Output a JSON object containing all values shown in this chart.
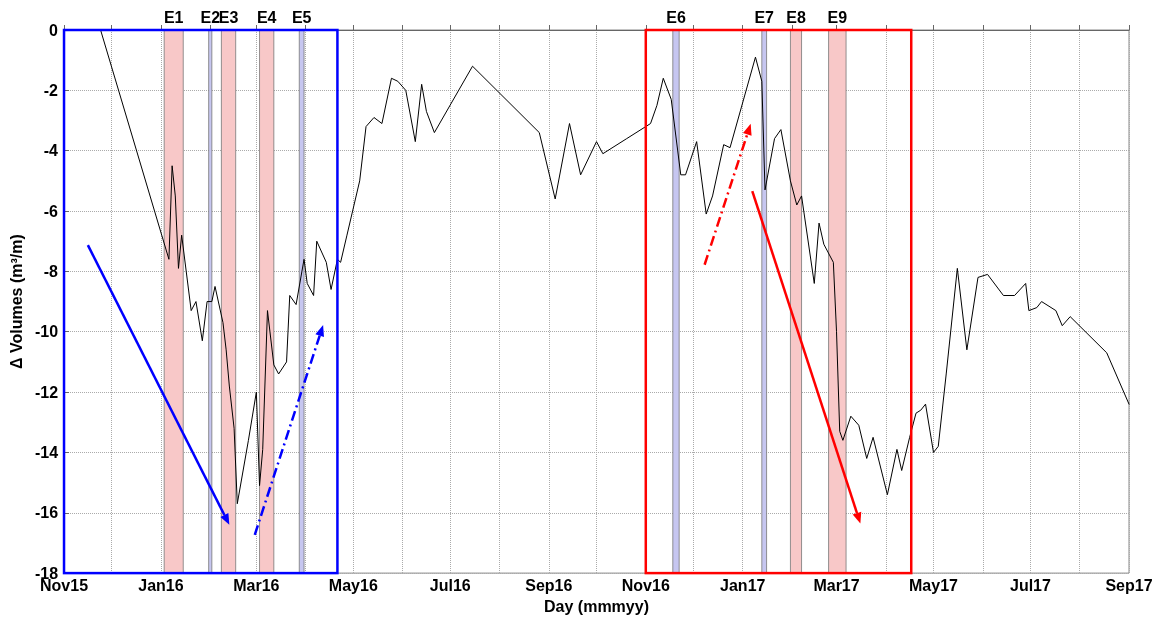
{
  "chart_data": {
    "type": "line",
    "xlabel": "Day (mmmyy)",
    "ylabel": "Δ Volumes (m³/m)",
    "x": [
      "2015-11-24",
      "2016-01-06",
      "2016-01-08",
      "2016-01-10",
      "2016-01-12",
      "2016-01-14",
      "2016-01-20",
      "2016-01-23",
      "2016-01-27",
      "2016-01-30",
      "2016-02-02",
      "2016-02-04",
      "2016-02-09",
      "2016-02-11",
      "2016-02-13",
      "2016-02-16",
      "2016-02-18",
      "2016-02-25",
      "2016-03-01",
      "2016-03-03",
      "2016-03-05",
      "2016-03-08",
      "2016-03-12",
      "2016-03-15",
      "2016-03-20",
      "2016-03-22",
      "2016-03-26",
      "2016-03-31",
      "2016-04-02",
      "2016-04-06",
      "2016-04-08",
      "2016-04-14",
      "2016-04-17",
      "2016-04-21",
      "2016-04-23",
      "2016-04-27",
      "2016-05-05",
      "2016-05-09",
      "2016-05-14",
      "2016-05-19",
      "2016-05-25",
      "2016-05-29",
      "2016-06-03",
      "2016-06-09",
      "2016-06-13",
      "2016-06-16",
      "2016-06-21",
      "2016-07-15",
      "2016-08-26",
      "2016-09-05",
      "2016-09-14",
      "2016-09-21",
      "2016-10-01",
      "2016-10-05",
      "2016-10-20",
      "2016-11-04",
      "2016-11-08",
      "2016-11-12",
      "2016-11-17",
      "2016-11-23",
      "2016-11-26",
      "2016-12-03",
      "2016-12-09",
      "2016-12-13",
      "2016-12-20",
      "2016-12-24",
      "2017-01-09",
      "2017-01-13",
      "2017-01-15",
      "2017-01-21",
      "2017-01-25",
      "2017-01-31",
      "2017-02-04",
      "2017-02-07",
      "2017-02-15",
      "2017-02-18",
      "2017-02-21",
      "2017-02-27",
      "2017-03-01",
      "2017-03-03",
      "2017-03-05",
      "2017-03-10",
      "2017-03-15",
      "2017-03-20",
      "2017-03-24",
      "2017-04-02",
      "2017-04-08",
      "2017-04-11",
      "2017-04-16",
      "2017-04-20",
      "2017-04-23",
      "2017-04-26",
      "2017-05-01",
      "2017-05-04",
      "2017-05-09",
      "2017-05-16",
      "2017-05-22",
      "2017-05-29",
      "2017-06-04",
      "2017-06-14",
      "2017-06-21",
      "2017-06-28",
      "2017-06-30",
      "2017-07-05",
      "2017-07-08",
      "2017-07-17",
      "2017-07-21",
      "2017-07-26",
      "2017-08-18",
      "2017-09-01"
    ],
    "series": [
      {
        "color": "#000000",
        "values": [
          0,
          -7.6,
          -4.5,
          -5.5,
          -7.9,
          -6.8,
          -9.3,
          -9.0,
          -10.3,
          -9.0,
          -9.0,
          -8.5,
          -9.7,
          -10.6,
          -11.8,
          -13.2,
          -15.7,
          -13.6,
          -12.0,
          -15.1,
          -13.9,
          -9.3,
          -11.1,
          -11.4,
          -11.0,
          -8.8,
          -9.1,
          -7.6,
          -8.4,
          -8.8,
          -7.0,
          -7.7,
          -8.6,
          -7.6,
          -7.7,
          -6.8,
          -5.0,
          -3.2,
          -2.9,
          -3.1,
          -1.6,
          -1.7,
          -2.0,
          -3.7,
          -1.8,
          -2.7,
          -3.4,
          -1.2,
          -3.4,
          -5.6,
          -3.1,
          -4.8,
          -3.7,
          -4.1,
          -3.6,
          -3.1,
          -2.5,
          -1.6,
          -2.3,
          -4.8,
          -4.8,
          -3.7,
          -6.1,
          -5.5,
          -3.8,
          -3.9,
          -0.9,
          -1.7,
          -5.3,
          -3.6,
          -3.3,
          -5.0,
          -5.8,
          -5.5,
          -8.4,
          -6.4,
          -7.1,
          -7.7,
          -10.0,
          -13.3,
          -13.6,
          -12.8,
          -13.1,
          -14.2,
          -13.5,
          -15.4,
          -13.9,
          -14.6,
          -13.5,
          -12.7,
          -12.6,
          -12.4,
          -14.0,
          -13.8,
          -11.4,
          -7.9,
          -10.6,
          -8.2,
          -8.1,
          -8.8,
          -8.8,
          -8.4,
          -9.3,
          -9.2,
          -9.0,
          -9.3,
          -9.8,
          -9.5,
          -10.7,
          -12.4
        ]
      }
    ],
    "xlim": [
      "2015-11-01",
      "2017-09-01"
    ],
    "xticks": [
      {
        "value": "2015-11-01",
        "label": "Nov15"
      },
      {
        "value": "2015-12-01",
        "label": null
      },
      {
        "value": "2016-01-01",
        "label": "Jan16"
      },
      {
        "value": "2016-02-01",
        "label": null
      },
      {
        "value": "2016-03-01",
        "label": "Mar16"
      },
      {
        "value": "2016-04-01",
        "label": null
      },
      {
        "value": "2016-05-01",
        "label": "May16"
      },
      {
        "value": "2016-06-01",
        "label": null
      },
      {
        "value": "2016-07-01",
        "label": "Jul16"
      },
      {
        "value": "2016-08-01",
        "label": null
      },
      {
        "value": "2016-09-01",
        "label": "Sep16"
      },
      {
        "value": "2016-10-01",
        "label": null
      },
      {
        "value": "2016-11-01",
        "label": "Nov16"
      },
      {
        "value": "2016-12-01",
        "label": null
      },
      {
        "value": "2017-01-01",
        "label": "Jan17"
      },
      {
        "value": "2017-02-01",
        "label": null
      },
      {
        "value": "2017-03-01",
        "label": "Mar17"
      },
      {
        "value": "2017-04-01",
        "label": null
      },
      {
        "value": "2017-05-01",
        "label": "May17"
      },
      {
        "value": "2017-06-01",
        "label": null
      },
      {
        "value": "2017-07-01",
        "label": "Jul17"
      },
      {
        "value": "2017-08-01",
        "label": null
      },
      {
        "value": "2017-09-01",
        "label": "Sep17"
      }
    ],
    "ylim": [
      -18,
      0
    ],
    "yticks": [
      -18,
      -16,
      -14,
      -12,
      -10,
      -8,
      -6,
      -4,
      -2,
      0
    ],
    "grid": true,
    "line_style": "solid",
    "bands": [
      {
        "axis": "x",
        "from": "2016-01-03",
        "to": "2016-01-15",
        "label": "E1",
        "color": "#f8c8c8"
      },
      {
        "axis": "x",
        "from": "2016-01-31",
        "to": "2016-02-02",
        "label": "E2",
        "color": "#c6c6f0"
      },
      {
        "axis": "x",
        "from": "2016-02-08",
        "to": "2016-02-17",
        "label": "E3",
        "color": "#f8c8c8"
      },
      {
        "axis": "x",
        "from": "2016-03-03",
        "to": "2016-03-12",
        "label": "E4",
        "color": "#f8c8c8"
      },
      {
        "axis": "x",
        "from": "2016-03-28",
        "to": "2016-03-31",
        "label": "E5",
        "color": "#c6c6f0"
      },
      {
        "axis": "x",
        "from": "2016-11-18",
        "to": "2016-11-22",
        "label": "E6",
        "color": "#c6c6f0"
      },
      {
        "axis": "x",
        "from": "2017-01-13",
        "to": "2017-01-16",
        "label": "E7",
        "color": "#c6c6f0"
      },
      {
        "axis": "x",
        "from": "2017-01-31",
        "to": "2017-02-07",
        "label": "E8",
        "color": "#f8c8c8"
      },
      {
        "axis": "x",
        "from": "2017-02-24",
        "to": "2017-03-07",
        "label": "E9",
        "color": "#f8c8c8"
      }
    ]
  }
}
